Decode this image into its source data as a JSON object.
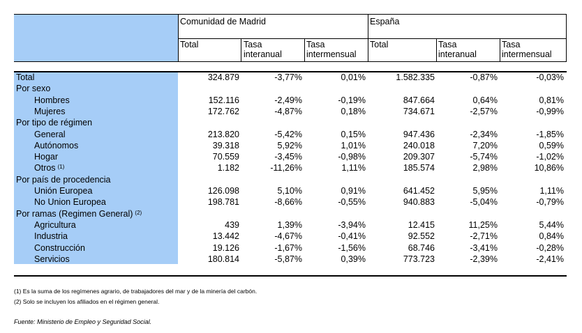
{
  "header": {
    "group_madrid": "Comunidad de Madrid",
    "group_espana": "España",
    "columns": [
      {
        "line1": "Total",
        "line2": ""
      },
      {
        "line1": "Tasa",
        "line2": "interanual"
      },
      {
        "line1": "Tasa",
        "line2": "intermensual"
      },
      {
        "line1": "Total",
        "line2": ""
      },
      {
        "line1": "Tasa",
        "line2": "interanual"
      },
      {
        "line1": "Tasa",
        "line2": "intermensual"
      }
    ]
  },
  "rows": [
    {
      "label": "Total",
      "indent": false,
      "sup": "",
      "values": [
        "324.879",
        "-3,77%",
        "0,01%",
        "1.582.335",
        "-0,87%",
        "-0,03%"
      ]
    },
    {
      "label": "Por sexo",
      "indent": false,
      "sup": "",
      "values": []
    },
    {
      "label": "Hombres",
      "indent": true,
      "sup": "",
      "values": [
        "152.116",
        "-2,49%",
        "-0,19%",
        "847.664",
        "0,64%",
        "0,81%"
      ]
    },
    {
      "label": "Mujeres",
      "indent": true,
      "sup": "",
      "values": [
        "172.762",
        "-4,87%",
        "0,18%",
        "734.671",
        "-2,57%",
        "-0,99%"
      ]
    },
    {
      "label": "Por tipo de régimen",
      "indent": false,
      "sup": "",
      "values": []
    },
    {
      "label": "General",
      "indent": true,
      "sup": "",
      "values": [
        "213.820",
        "-5,42%",
        "0,15%",
        "947.436",
        "-2,34%",
        "-1,85%"
      ]
    },
    {
      "label": "Autónomos",
      "indent": true,
      "sup": "",
      "values": [
        "39.318",
        "5,92%",
        "1,01%",
        "240.018",
        "7,20%",
        "0,59%"
      ]
    },
    {
      "label": "Hogar",
      "indent": true,
      "sup": "",
      "values": [
        "70.559",
        "-3,45%",
        "-0,98%",
        "209.307",
        "-5,74%",
        "-1,02%"
      ]
    },
    {
      "label": "Otros",
      "indent": true,
      "sup": "(1)",
      "values": [
        "1.182",
        "-11,26%",
        "1,11%",
        "185.574",
        "2,98%",
        "10,86%"
      ]
    },
    {
      "label": "Por país de procedencia",
      "indent": false,
      "sup": "",
      "values": []
    },
    {
      "label": "Unión Europea",
      "indent": true,
      "sup": "",
      "values": [
        "126.098",
        "5,10%",
        "0,91%",
        "641.452",
        "5,95%",
        "1,11%"
      ]
    },
    {
      "label": "No Union Europea",
      "indent": true,
      "sup": "",
      "values": [
        "198.781",
        "-8,66%",
        "-0,55%",
        "940.883",
        "-5,04%",
        "-0,79%"
      ]
    },
    {
      "label": "Por ramas (Regimen General)",
      "indent": false,
      "sup": "(2)",
      "values": []
    },
    {
      "label": "Agricultura",
      "indent": true,
      "sup": "",
      "values": [
        "439",
        "1,39%",
        "-3,94%",
        "12.415",
        "11,25%",
        "5,44%"
      ]
    },
    {
      "label": "Industria",
      "indent": true,
      "sup": "",
      "values": [
        "13.442",
        "-4,67%",
        "-0,41%",
        "92.552",
        "-2,71%",
        "0,84%"
      ]
    },
    {
      "label": "Construcción",
      "indent": true,
      "sup": "",
      "values": [
        "19.126",
        "-1,67%",
        "-1,56%",
        "68.746",
        "-3,41%",
        "-0,28%"
      ]
    },
    {
      "label": "Servicios",
      "indent": true,
      "sup": "",
      "values": [
        "180.814",
        "-5,87%",
        "0,39%",
        "773.723",
        "-2,39%",
        "-2,41%"
      ]
    }
  ],
  "notes": {
    "note1": "(1) Es la suma de los regímenes  agrario, de trabajadores del mar y de la minería del carbón.",
    "note2": "(2) Solo se incluyen los afiliados en el régimen general.",
    "source": "Fuente: Ministerio de Empleo y Seguridad Social."
  },
  "colors": {
    "label_fill": "#a6cdf7"
  }
}
